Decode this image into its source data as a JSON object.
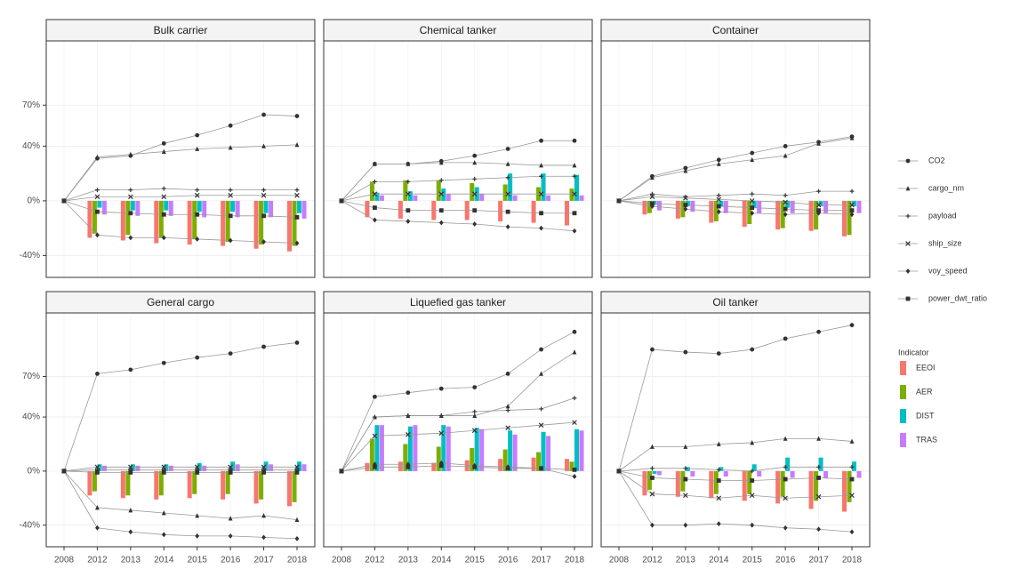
{
  "chart_data": {
    "type": "bar_line_facets",
    "categories": [
      "2008",
      "2012",
      "2013",
      "2014",
      "2015",
      "2016",
      "2017",
      "2018"
    ],
    "ylim": [
      -56,
      117
    ],
    "yticks": [
      {
        "value": -40,
        "label": "-40%"
      },
      {
        "value": 0,
        "label": "0%"
      },
      {
        "value": 40,
        "label": "40%"
      },
      {
        "value": 70,
        "label": "70%"
      }
    ],
    "grid": true,
    "line_series": [
      {
        "name": "CO2",
        "color": "#999999",
        "marker": "circle"
      },
      {
        "name": "cargo_nm",
        "color": "#999999",
        "marker": "triangle"
      },
      {
        "name": "payload",
        "color": "#999999",
        "marker": "plus"
      },
      {
        "name": "ship_size",
        "color": "#999999",
        "marker": "cross"
      },
      {
        "name": "voy_speed",
        "color": "#999999",
        "marker": "diamond"
      },
      {
        "name": "power_dwt_ratio",
        "color": "#999999",
        "marker": "square"
      }
    ],
    "legend_title": "Indicator",
    "bar_series": [
      {
        "name": "EEOI",
        "color": "#F8766D"
      },
      {
        "name": "AER",
        "color": "#7CAE00"
      },
      {
        "name": "DIST",
        "color": "#00BFC4"
      },
      {
        "name": "TRAS",
        "color": "#C77CFF"
      }
    ],
    "facets": [
      {
        "title": "Bulk carrier",
        "lines": [
          [
            0,
            31,
            33,
            42,
            48,
            55,
            63,
            62
          ],
          [
            0,
            32,
            34,
            36,
            38,
            39,
            40,
            41
          ],
          [
            0,
            8,
            8,
            9,
            8,
            8,
            8,
            8
          ],
          [
            0,
            3,
            3,
            3,
            4,
            4,
            4,
            4
          ],
          [
            0,
            -25,
            -27,
            -27,
            -28,
            -29,
            -30,
            -31
          ],
          [
            0,
            -8,
            -9,
            -10,
            -10,
            -11,
            -11,
            -12
          ]
        ],
        "bars": [
          [
            null,
            -27,
            -29,
            -31,
            -32,
            -33,
            -35,
            -37
          ],
          [
            null,
            -24,
            -25,
            -27,
            -28,
            -30,
            -32,
            -33
          ],
          [
            null,
            -5,
            -7,
            -7,
            -8,
            -8,
            -9,
            -9
          ],
          [
            null,
            -10,
            -11,
            -11,
            -12,
            -12,
            -12,
            -13
          ]
        ]
      },
      {
        "title": "Chemical tanker",
        "lines": [
          [
            0,
            27,
            27,
            29,
            33,
            38,
            44,
            44
          ],
          [
            0,
            27,
            27,
            28,
            28,
            27,
            26,
            26
          ],
          [
            0,
            14,
            14,
            15,
            16,
            17,
            18,
            18
          ],
          [
            0,
            5,
            5,
            5,
            5,
            5,
            5,
            5
          ],
          [
            0,
            -14,
            -15,
            -16,
            -17,
            -19,
            -20,
            -22
          ],
          [
            0,
            -5,
            -7,
            -7,
            -7,
            -8,
            -9,
            -9
          ]
        ],
        "bars": [
          [
            null,
            -12,
            -13,
            -14,
            -14,
            -15,
            -16,
            -18
          ],
          [
            null,
            14,
            15,
            15,
            13,
            12,
            10,
            9
          ],
          [
            null,
            6,
            7,
            9,
            10,
            20,
            20,
            19
          ],
          [
            null,
            4,
            4,
            5,
            5,
            4,
            4,
            4
          ]
        ]
      },
      {
        "title": "Container",
        "lines": [
          [
            0,
            18,
            24,
            30,
            35,
            40,
            43,
            47
          ],
          [
            0,
            17,
            22,
            27,
            30,
            33,
            42,
            46
          ],
          [
            0,
            5,
            3,
            4,
            5,
            4,
            7,
            7
          ],
          [
            0,
            3,
            2,
            1,
            0,
            -1,
            -3,
            -3
          ],
          [
            0,
            -4,
            -6,
            -8,
            -9,
            -10,
            -9,
            -10
          ],
          [
            0,
            -2,
            -3,
            -4,
            -5,
            -6,
            -7,
            -7
          ]
        ],
        "bars": [
          [
            null,
            -10,
            -13,
            -16,
            -19,
            -21,
            -22,
            -26
          ],
          [
            null,
            -9,
            -12,
            -15,
            -17,
            -20,
            -21,
            -25
          ],
          [
            null,
            -3,
            -4,
            -4,
            -5,
            -5,
            -4,
            -4
          ],
          [
            null,
            -7,
            -8,
            -9,
            -9,
            -9,
            -9,
            -9
          ]
        ]
      },
      {
        "title": "General cargo",
        "lines": [
          [
            0,
            72,
            75,
            80,
            84,
            87,
            92,
            95
          ],
          [
            0,
            -27,
            -29,
            -31,
            -33,
            -35,
            -33,
            -36
          ],
          [
            0,
            1,
            1,
            1,
            1,
            1,
            1,
            1
          ],
          [
            0,
            3,
            3,
            3,
            3,
            3,
            3,
            3
          ],
          [
            0,
            -42,
            -45,
            -47,
            -48,
            -48,
            -49,
            -50
          ],
          [
            0,
            -1,
            -1,
            -1,
            -1,
            -1,
            -1,
            -1
          ]
        ],
        "bars": [
          [
            null,
            -18,
            -20,
            -21,
            -20,
            -21,
            -24,
            -26
          ],
          [
            null,
            -15,
            -18,
            -18,
            -17,
            -17,
            -21,
            -23
          ],
          [
            null,
            5,
            5,
            5,
            6,
            7,
            7,
            7
          ],
          [
            null,
            4,
            4,
            4,
            4,
            5,
            5,
            5
          ]
        ]
      },
      {
        "title": "Liquefied gas tanker",
        "lines": [
          [
            0,
            55,
            58,
            61,
            62,
            72,
            90,
            103
          ],
          [
            0,
            40,
            41,
            41,
            41,
            48,
            72,
            88
          ],
          [
            0,
            40,
            41,
            41,
            44,
            45,
            46,
            54
          ],
          [
            0,
            26,
            27,
            28,
            30,
            32,
            34,
            36
          ],
          [
            0,
            5,
            5,
            6,
            4,
            3,
            2,
            -4
          ],
          [
            0,
            3,
            3,
            4,
            3,
            2,
            2,
            1
          ]
        ],
        "bars": [
          [
            null,
            6,
            7,
            6,
            8,
            9,
            10,
            9
          ],
          [
            null,
            24,
            20,
            18,
            17,
            16,
            14,
            7
          ],
          [
            null,
            34,
            33,
            34,
            32,
            30,
            29,
            31
          ],
          [
            null,
            34,
            34,
            33,
            31,
            27,
            26,
            30
          ]
        ]
      },
      {
        "title": "Oil tanker",
        "lines": [
          [
            0,
            90,
            88,
            87,
            90,
            98,
            103,
            108
          ],
          [
            0,
            18,
            18,
            20,
            21,
            24,
            24,
            22
          ],
          [
            0,
            2,
            2,
            1,
            0,
            3,
            3,
            3
          ],
          [
            0,
            -17,
            -18,
            -20,
            -18,
            -20,
            -19,
            -18
          ],
          [
            0,
            -40,
            -40,
            -39,
            -40,
            -42,
            -43,
            -45
          ],
          [
            0,
            -5,
            -6,
            -7,
            -7,
            -6,
            -5,
            -6
          ]
        ],
        "bars": [
          [
            null,
            -18,
            -19,
            -20,
            -22,
            -24,
            -28,
            -30
          ],
          [
            null,
            -14,
            -15,
            -17,
            -17,
            -19,
            -22,
            -23
          ],
          [
            null,
            -2,
            3,
            3,
            5,
            10,
            10,
            7
          ],
          [
            null,
            -3,
            -4,
            -4,
            -4,
            -5,
            -5,
            -5
          ]
        ]
      }
    ]
  }
}
